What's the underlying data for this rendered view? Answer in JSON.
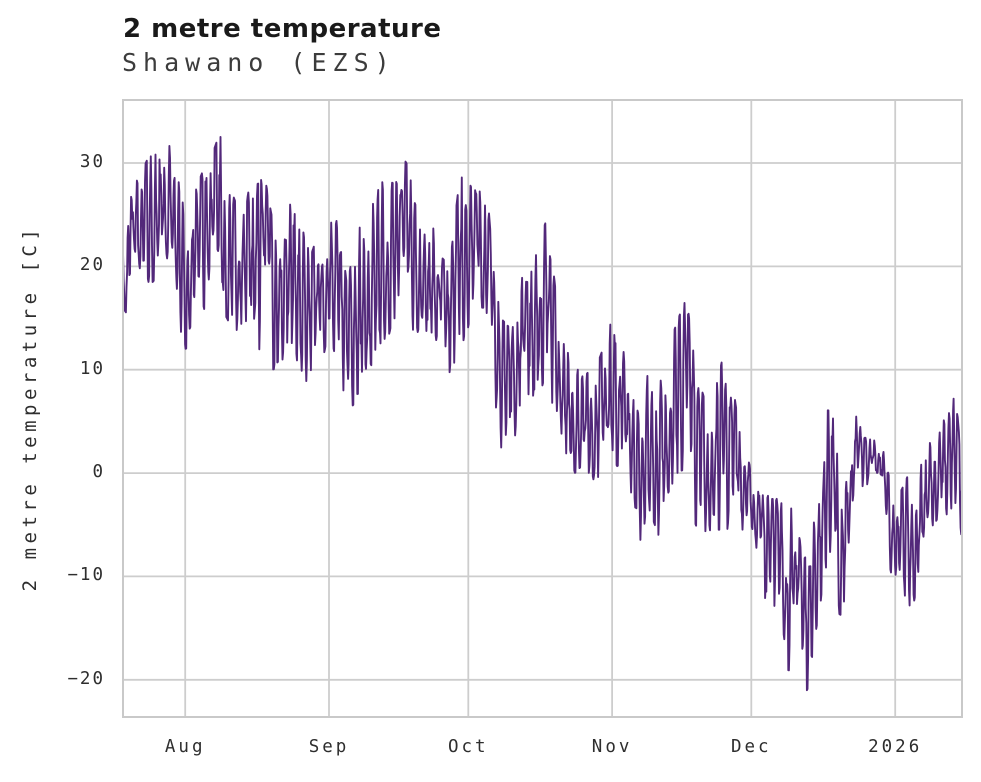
{
  "page": {
    "background": "#ffffff"
  },
  "chart_data": {
    "type": "line",
    "title": "2 metre temperature",
    "subtitle": "Shawano (EZS)",
    "ylabel": "2 metre temperature [C]",
    "series_name": "2 metre temperature",
    "line_color": "#52287a",
    "grid_color": "#cdcdcd",
    "spine_color": "#c9c9c9",
    "title_color": "#1a1a1a",
    "subtitle_color": "#3c3c3c",
    "tick_text_color": "#2e2e2e",
    "grid": true,
    "legend": "none",
    "x_unit": "days since 2025-08-01 (tick = month start)",
    "x_ticks": [
      {
        "label": "Aug",
        "day": 0
      },
      {
        "label": "Sep",
        "day": 31
      },
      {
        "label": "Oct",
        "day": 61
      },
      {
        "label": "Nov",
        "day": 92
      },
      {
        "label": "Dec",
        "day": 122
      },
      {
        "label": "2026",
        "day": 153
      }
    ],
    "y_ticks": [
      {
        "label": "30",
        "value": 30
      },
      {
        "label": "20",
        "value": 20
      },
      {
        "label": "10",
        "value": 10
      },
      {
        "label": "0",
        "value": 0
      },
      {
        "label": "−10",
        "value": -10
      },
      {
        "label": "−20",
        "value": -20
      }
    ],
    "xlim_days": [
      -13.4,
      167.4
    ],
    "ylim": [
      -23.6,
      36.1
    ],
    "sample_hours": 3,
    "diurnal_peak_dayfraction": 0.55,
    "envelope_daily_comment": "approx daily [day, min C, max C] envelope read from plot",
    "envelope_daily": [
      [
        -13.4,
        16,
        23
      ],
      [
        -12,
        15,
        27.5
      ],
      [
        -10,
        17,
        28.5
      ],
      [
        -8,
        18,
        30.5
      ],
      [
        -6,
        19,
        31
      ],
      [
        -4,
        20,
        33.4
      ],
      [
        -2,
        15,
        29.5
      ],
      [
        0,
        12,
        25
      ],
      [
        2,
        12.5,
        27
      ],
      [
        4,
        15,
        29.5
      ],
      [
        6,
        17,
        31
      ],
      [
        7.5,
        16,
        33
      ],
      [
        9,
        15,
        28.5
      ],
      [
        11,
        13,
        26
      ],
      [
        13,
        12,
        25.5
      ],
      [
        15,
        11,
        31
      ],
      [
        17,
        13,
        29
      ],
      [
        19,
        10,
        24
      ],
      [
        21,
        11,
        26
      ],
      [
        23,
        12,
        27.5
      ],
      [
        25,
        10,
        24
      ],
      [
        27,
        8,
        21
      ],
      [
        29,
        9.5,
        23.5
      ],
      [
        31,
        14,
        26
      ],
      [
        33,
        10,
        24
      ],
      [
        35,
        6,
        18
      ],
      [
        37,
        7,
        24.5
      ],
      [
        39,
        6.5,
        22
      ],
      [
        41,
        12,
        27.5
      ],
      [
        43,
        13,
        28.5
      ],
      [
        45,
        14,
        28
      ],
      [
        47,
        15,
        30.5
      ],
      [
        49,
        14,
        29
      ],
      [
        51,
        11,
        22.5
      ],
      [
        53,
        12,
        24.5
      ],
      [
        55,
        12,
        21
      ],
      [
        57,
        9,
        20
      ],
      [
        59,
        8.5,
        28
      ],
      [
        61,
        14,
        30
      ],
      [
        63,
        16,
        29
      ],
      [
        64.5,
        16,
        30.9
      ],
      [
        66,
        10,
        22
      ],
      [
        68,
        2.5,
        15
      ],
      [
        70,
        2,
        14
      ],
      [
        72,
        5,
        18
      ],
      [
        74,
        7,
        21
      ],
      [
        76,
        8,
        22
      ],
      [
        78,
        9,
        24.7
      ],
      [
        80,
        5,
        17
      ],
      [
        82,
        2,
        12
      ],
      [
        84,
        0,
        10.5
      ],
      [
        86,
        1,
        11
      ],
      [
        88,
        -1,
        9.5
      ],
      [
        90,
        0,
        12
      ],
      [
        92,
        1.5,
        15.5
      ],
      [
        94,
        0,
        13
      ],
      [
        96,
        -3,
        9
      ],
      [
        98,
        -7.3,
        5
      ],
      [
        100,
        -3.5,
        10.5
      ],
      [
        102,
        -6,
        8
      ],
      [
        104,
        -2,
        12
      ],
      [
        106,
        0,
        14.6
      ],
      [
        108,
        0.5,
        17.1
      ],
      [
        110,
        -5,
        10
      ],
      [
        112,
        -6.8,
        7
      ],
      [
        114,
        -4.5,
        9.5
      ],
      [
        116,
        -6.5,
        11
      ],
      [
        118,
        -4,
        8.5
      ],
      [
        120,
        -5.5,
        2.5
      ],
      [
        122,
        -7,
        0.5
      ],
      [
        124,
        -9,
        -1
      ],
      [
        126,
        -17.4,
        -2.5
      ],
      [
        128,
        -12,
        -2.5
      ],
      [
        130,
        -19.4,
        -3
      ],
      [
        132,
        -13,
        -3.5
      ],
      [
        134,
        -21.2,
        -7
      ],
      [
        136,
        -15,
        -3
      ],
      [
        138,
        -10,
        6.1
      ],
      [
        140,
        -13.3,
        6
      ],
      [
        142,
        -14,
        0
      ],
      [
        144,
        -3,
        7.2
      ],
      [
        146,
        -2.5,
        3.5
      ],
      [
        148,
        0,
        3.2
      ],
      [
        150,
        -1.5,
        3
      ],
      [
        152,
        -10.3,
        -1
      ],
      [
        154,
        -14.8,
        -2
      ],
      [
        156,
        -15.2,
        0
      ],
      [
        158,
        -10,
        1.5
      ],
      [
        160,
        -6,
        3
      ],
      [
        162,
        -4.5,
        4
      ],
      [
        164,
        -4,
        5.5
      ],
      [
        166,
        -4,
        8.2
      ],
      [
        167.4,
        -8.5,
        0
      ]
    ]
  }
}
